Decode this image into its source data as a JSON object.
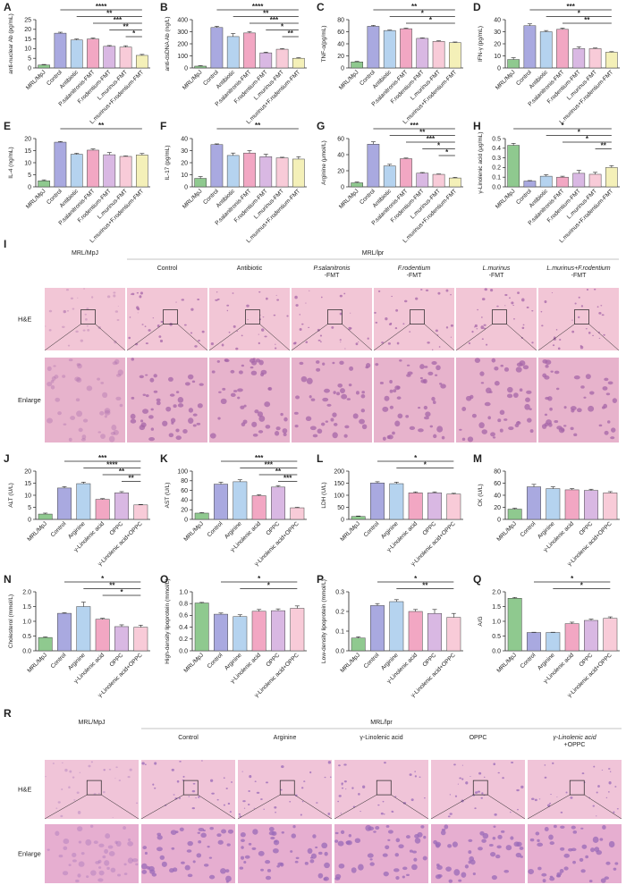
{
  "chart_data": [
    {
      "type": "bar",
      "label": "A",
      "ylabel": "anti-nuclear Ab (pg/mL)",
      "categories": [
        "MRL/MpJ",
        "Control",
        "Antibiotic",
        "P.salanitronis-FMT",
        "F.rodentium-FMT",
        "L.murinus-FMT",
        "L.murinus+F.rodentium-FMT"
      ],
      "values": [
        1.5,
        18,
        14.5,
        15,
        11.2,
        10.8,
        6.5
      ],
      "errors": [
        0.3,
        0.5,
        0.5,
        0.5,
        0.4,
        0.7,
        0.5
      ],
      "colors": [
        "#8fc98f",
        "#a9a9e0",
        "#b5d3ef",
        "#f2a7c3",
        "#d9b8e3",
        "#f8cbd8",
        "#f4f0b8"
      ],
      "ylim": [
        0,
        25
      ],
      "yticks": [
        0,
        5,
        10,
        15,
        20,
        25
      ],
      "annotations": [
        {
          "text": "****",
          "from": 1,
          "to": 6
        },
        {
          "text": "**",
          "from": 2,
          "to": 6
        },
        {
          "text": "***",
          "from": 3,
          "to": 6
        },
        {
          "text": "**",
          "from": 4,
          "to": 6
        },
        {
          "text": "*",
          "from": 5,
          "to": 6
        }
      ]
    },
    {
      "type": "bar",
      "label": "B",
      "ylabel": "anti-dsDNA Ab (ng/L)",
      "categories": [
        "MRL/MpJ",
        "Control",
        "Antibiotic",
        "P.salanitronis-FMT",
        "F.rodentium-FMT",
        "L.murinus-FMT",
        "L.murinus+F.rodentium-FMT"
      ],
      "values": [
        15,
        335,
        260,
        290,
        125,
        155,
        80
      ],
      "errors": [
        4,
        10,
        25,
        12,
        6,
        5,
        5
      ],
      "colors": [
        "#8fc98f",
        "#a9a9e0",
        "#b5d3ef",
        "#f2a7c3",
        "#d9b8e3",
        "#f8cbd8",
        "#f4f0b8"
      ],
      "ylim": [
        0,
        400
      ],
      "yticks": [
        0,
        100,
        200,
        300,
        400
      ],
      "annotations": [
        {
          "text": "****",
          "from": 1,
          "to": 6
        },
        {
          "text": "**",
          "from": 2,
          "to": 6
        },
        {
          "text": "***",
          "from": 3,
          "to": 6
        },
        {
          "text": "*",
          "from": 4,
          "to": 6
        },
        {
          "text": "**",
          "from": 5,
          "to": 6
        }
      ]
    },
    {
      "type": "bar",
      "label": "C",
      "ylabel": "TNF-α(pg/mL)",
      "categories": [
        "MRL/MpJ",
        "Control",
        "Antibiotic",
        "P.salanitronis-FMT",
        "F.rodentium-FMT",
        "L.murinus-FMT",
        "L.murinus+F.rodentium-FMT"
      ],
      "values": [
        10,
        69,
        62,
        65,
        49,
        44,
        42
      ],
      "errors": [
        1,
        1.5,
        0.8,
        1,
        0.8,
        1,
        1
      ],
      "colors": [
        "#8fc98f",
        "#a9a9e0",
        "#b5d3ef",
        "#f2a7c3",
        "#d9b8e3",
        "#f8cbd8",
        "#f4f0b8"
      ],
      "ylim": [
        0,
        80
      ],
      "yticks": [
        0,
        20,
        40,
        60,
        80
      ],
      "annotations": [
        {
          "text": "**",
          "from": 1,
          "to": 6
        },
        {
          "text": "*",
          "from": 2,
          "to": 6
        },
        {
          "text": "*",
          "from": 3,
          "to": 6
        }
      ]
    },
    {
      "type": "bar",
      "label": "D",
      "ylabel": "IFN-γ (pg/mL)",
      "categories": [
        "MRL/MpJ",
        "Control",
        "Antibiotic",
        "P.salanitronis-FMT",
        "F.rodentium-FMT",
        "L.murinus-FMT",
        "L.murinus+F.rodentium-FMT"
      ],
      "values": [
        7,
        35,
        30,
        32,
        16,
        16,
        13
      ],
      "errors": [
        1.5,
        1.5,
        1,
        1,
        1.5,
        0.5,
        0.5
      ],
      "colors": [
        "#8fc98f",
        "#a9a9e0",
        "#b5d3ef",
        "#f2a7c3",
        "#d9b8e3",
        "#f8cbd8",
        "#f4f0b8"
      ],
      "ylim": [
        0,
        40
      ],
      "yticks": [
        0,
        10,
        20,
        30,
        40
      ],
      "annotations": [
        {
          "text": "***",
          "from": 1,
          "to": 6
        },
        {
          "text": "*",
          "from": 2,
          "to": 6
        },
        {
          "text": "**",
          "from": 3,
          "to": 6
        }
      ]
    },
    {
      "type": "bar",
      "label": "E",
      "ylabel": "IL-4 (ng/mL)",
      "categories": [
        "MRL/MpJ",
        "Control",
        "Antibiotic",
        "P.salanitronis-FMT",
        "F.rodentium-FMT",
        "L.murinus-FMT",
        "L.murinus+F.rodentium-FMT"
      ],
      "values": [
        2.5,
        18.5,
        13.5,
        15.2,
        13.3,
        12.6,
        13.2
      ],
      "errors": [
        0.4,
        0.3,
        0.4,
        0.5,
        0.9,
        0.2,
        0.6
      ],
      "colors": [
        "#8fc98f",
        "#a9a9e0",
        "#b5d3ef",
        "#f2a7c3",
        "#d9b8e3",
        "#f8cbd8",
        "#f4f0b8"
      ],
      "ylim": [
        0,
        20
      ],
      "yticks": [
        0,
        5,
        10,
        15,
        20
      ],
      "annotations": [
        {
          "text": "**",
          "from": 1,
          "to": 6
        }
      ]
    },
    {
      "type": "bar",
      "label": "F",
      "ylabel": "IL-17 (pg/mL)",
      "categories": [
        "MRL/MpJ",
        "Control",
        "Antibiotic",
        "P.salanitronis-FMT",
        "F.rodentium-FMT",
        "L.murinus-FMT",
        "L.murinus+F.rodentium-FMT"
      ],
      "values": [
        7,
        35,
        26,
        28,
        25,
        24,
        23
      ],
      "errors": [
        1.5,
        0.6,
        2,
        2,
        2,
        0.5,
        2
      ],
      "colors": [
        "#8fc98f",
        "#a9a9e0",
        "#b5d3ef",
        "#f2a7c3",
        "#d9b8e3",
        "#f8cbd8",
        "#f4f0b8"
      ],
      "ylim": [
        0,
        40
      ],
      "yticks": [
        0,
        10,
        20,
        30,
        40
      ],
      "annotations": [
        {
          "text": "**",
          "from": 1,
          "to": 6
        }
      ]
    },
    {
      "type": "bar",
      "label": "G",
      "ylabel": "Arginine (μmol/L)",
      "categories": [
        "MRL/MpJ",
        "Control",
        "Antibiotic",
        "P.salanitronis-FMT",
        "F.rodentium-FMT",
        "L.murinus-FMT",
        "L.murinus+F.rodentium-FMT"
      ],
      "values": [
        5,
        53,
        26,
        35,
        17,
        15.5,
        11
      ],
      "errors": [
        1,
        3,
        2,
        0.8,
        0.8,
        0.5,
        0.8
      ],
      "colors": [
        "#8fc98f",
        "#a9a9e0",
        "#b5d3ef",
        "#f2a7c3",
        "#d9b8e3",
        "#f8cbd8",
        "#f4f0b8"
      ],
      "ylim": [
        0,
        60
      ],
      "yticks": [
        0,
        20,
        40,
        60
      ],
      "annotations": [
        {
          "text": "***",
          "from": 1,
          "to": 6
        },
        {
          "text": "**",
          "from": 2,
          "to": 6
        },
        {
          "text": "***",
          "from": 3,
          "to": 6
        },
        {
          "text": "*",
          "from": 4,
          "to": 6
        },
        {
          "text": "*",
          "from": 5,
          "to": 6
        }
      ]
    },
    {
      "type": "bar",
      "label": "H",
      "ylabel": "γ-Linolenic acid (μg/mL)",
      "categories": [
        "MRL/MpJ",
        "Control",
        "Antibiotic",
        "P.salanitronis-FMT",
        "F.rodentium-FMT",
        "L.murinus-FMT",
        "L.murinus+F.rodentium-FMT"
      ],
      "values": [
        0.43,
        0.06,
        0.11,
        0.1,
        0.14,
        0.13,
        0.2
      ],
      "errors": [
        0.02,
        0.005,
        0.015,
        0.01,
        0.03,
        0.02,
        0.02
      ],
      "colors": [
        "#8fc98f",
        "#a9a9e0",
        "#b5d3ef",
        "#f2a7c3",
        "#d9b8e3",
        "#f8cbd8",
        "#f4f0b8"
      ],
      "ylim": [
        0,
        0.5
      ],
      "yticks": [
        {
          "value": 0,
          "label": "0.0"
        },
        0.1,
        0.2,
        0.3,
        0.4,
        0.5
      ],
      "annotations": [
        {
          "text": "*",
          "from": 0,
          "to": 6
        },
        {
          "text": "*",
          "from": 2,
          "to": 6
        },
        {
          "text": "*",
          "from": 3,
          "to": 6
        },
        {
          "text": "**",
          "from": 5,
          "to": 6
        }
      ]
    },
    {
      "type": "bar",
      "label": "J",
      "ylabel": "ALT (U/L)",
      "categories": [
        "MRL/MpJ",
        "Control",
        "Arginine",
        "γ-Linolenic acid",
        "OPPC",
        "γ-Linolenic acid+OPPC"
      ],
      "values": [
        2.2,
        13,
        14.8,
        8.3,
        11,
        6
      ],
      "errors": [
        0.4,
        0.6,
        0.6,
        0.3,
        0.5,
        0.2
      ],
      "colors": [
        "#8fc98f",
        "#a9a9e0",
        "#b5d3ef",
        "#f2a7c3",
        "#d9b8e3",
        "#f8cbd8"
      ],
      "ylim": [
        0,
        20
      ],
      "yticks": [
        0,
        5,
        10,
        15,
        20
      ],
      "annotations": [
        {
          "text": "***",
          "from": 1,
          "to": 5
        },
        {
          "text": "****",
          "from": 2,
          "to": 5
        },
        {
          "text": "**",
          "from": 3,
          "to": 5
        },
        {
          "text": "**",
          "from": 4,
          "to": 5
        }
      ]
    },
    {
      "type": "bar",
      "label": "K",
      "ylabel": "AST (U/L)",
      "categories": [
        "MRL/MpJ",
        "Control",
        "Arginine",
        "γ-Linolenic acid",
        "OPPC",
        "γ-Linolenic acid+OPPC"
      ],
      "values": [
        13,
        73,
        78,
        49,
        67,
        24
      ],
      "errors": [
        1,
        4,
        4,
        2,
        3,
        1
      ],
      "colors": [
        "#8fc98f",
        "#a9a9e0",
        "#b5d3ef",
        "#f2a7c3",
        "#d9b8e3",
        "#f8cbd8"
      ],
      "ylim": [
        0,
        100
      ],
      "yticks": [
        0,
        20,
        40,
        60,
        80,
        100
      ],
      "annotations": [
        {
          "text": "***",
          "from": 1,
          "to": 5
        },
        {
          "text": "***",
          "from": 2,
          "to": 5
        },
        {
          "text": "**",
          "from": 3,
          "to": 5
        },
        {
          "text": "***",
          "from": 4,
          "to": 5
        }
      ]
    },
    {
      "type": "bar",
      "label": "L",
      "ylabel": "LDH (U/L)",
      "categories": [
        "MRL/MpJ",
        "Control",
        "Arginine",
        "γ-Linolenic acid",
        "OPPC",
        "γ-Linolenic acid+OPPC"
      ],
      "values": [
        12,
        151,
        148,
        110,
        110,
        105
      ],
      "errors": [
        2,
        5,
        6,
        4,
        4,
        3
      ],
      "colors": [
        "#8fc98f",
        "#a9a9e0",
        "#b5d3ef",
        "#f2a7c3",
        "#d9b8e3",
        "#f8cbd8"
      ],
      "ylim": [
        0,
        200
      ],
      "yticks": [
        0,
        50,
        100,
        150,
        200
      ],
      "annotations": [
        {
          "text": "*",
          "from": 1,
          "to": 5
        },
        {
          "text": "*",
          "from": 2,
          "to": 5
        }
      ]
    },
    {
      "type": "bar",
      "label": "M",
      "ylabel": "CK (U/L)",
      "categories": [
        "MRL/MpJ",
        "Control",
        "Arginine",
        "γ-Linolenic acid",
        "OPPC",
        "γ-Linolenic acid+OPPC"
      ],
      "values": [
        17,
        54,
        51,
        49,
        48,
        44
      ],
      "errors": [
        1.5,
        4,
        3,
        2,
        2,
        2
      ],
      "colors": [
        "#8fc98f",
        "#a9a9e0",
        "#b5d3ef",
        "#f2a7c3",
        "#d9b8e3",
        "#f8cbd8"
      ],
      "ylim": [
        0,
        80
      ],
      "yticks": [
        0,
        20,
        40,
        60,
        80
      ],
      "annotations": []
    },
    {
      "type": "bar",
      "label": "N",
      "ylabel": "Cholesterol (mmol/L)",
      "categories": [
        "MRL/MpJ",
        "Control",
        "Arginine",
        "γ-Linolenic acid",
        "OPPC",
        "γ-Linolenic acid+OPPC"
      ],
      "values": [
        0.45,
        1.27,
        1.5,
        1.07,
        0.82,
        0.8
      ],
      "errors": [
        0.02,
        0.02,
        0.15,
        0.03,
        0.06,
        0.07
      ],
      "colors": [
        "#8fc98f",
        "#a9a9e0",
        "#b5d3ef",
        "#f2a7c3",
        "#d9b8e3",
        "#f8cbd8"
      ],
      "ylim": [
        0,
        2
      ],
      "yticks": [
        {
          "value": 0,
          "label": "0.0"
        },
        0.5,
        {
          "value": 1,
          "label": "1.0"
        },
        1.5,
        {
          "value": 2,
          "label": "2.0"
        }
      ],
      "annotations": [
        {
          "text": "*",
          "from": 1,
          "to": 5
        },
        {
          "text": "**",
          "from": 2,
          "to": 5
        },
        {
          "text": "*",
          "from": 3,
          "to": 5
        }
      ]
    },
    {
      "type": "bar",
      "label": "O",
      "ylabel": "High-density lipoprotein (mmol/L)",
      "categories": [
        "MRL/MpJ",
        "Control",
        "Arginine",
        "γ-Linolenic acid",
        "OPPC",
        "γ-Linolenic acid+OPPC"
      ],
      "values": [
        0.81,
        0.62,
        0.58,
        0.67,
        0.68,
        0.72
      ],
      "errors": [
        0.01,
        0.02,
        0.03,
        0.03,
        0.03,
        0.04
      ],
      "colors": [
        "#8fc98f",
        "#a9a9e0",
        "#b5d3ef",
        "#f2a7c3",
        "#d9b8e3",
        "#f8cbd8"
      ],
      "ylim": [
        0,
        1
      ],
      "yticks": [
        {
          "value": 0,
          "label": "0.0"
        },
        0.2,
        0.4,
        0.6,
        0.8,
        {
          "value": 1,
          "label": "1.0"
        }
      ],
      "annotations": [
        {
          "text": "*",
          "from": 1,
          "to": 5
        },
        {
          "text": "*",
          "from": 2,
          "to": 5
        }
      ]
    },
    {
      "type": "bar",
      "label": "P",
      "ylabel": "Low-density lipoprotein (mmol/L)",
      "categories": [
        "MRL/MpJ",
        "Control",
        "Arginine",
        "γ-Linolenic acid",
        "OPPC",
        "γ-Linolenic acid+OPPC"
      ],
      "values": [
        0.065,
        0.23,
        0.25,
        0.2,
        0.19,
        0.17
      ],
      "errors": [
        0.006,
        0.01,
        0.01,
        0.01,
        0.02,
        0.02
      ],
      "colors": [
        "#8fc98f",
        "#a9a9e0",
        "#b5d3ef",
        "#f2a7c3",
        "#d9b8e3",
        "#f8cbd8"
      ],
      "ylim": [
        0,
        0.3
      ],
      "yticks": [
        {
          "value": 0,
          "label": "0.0"
        },
        0.1,
        0.2,
        0.3
      ],
      "annotations": [
        {
          "text": "*",
          "from": 1,
          "to": 5
        },
        {
          "text": "**",
          "from": 2,
          "to": 5
        }
      ]
    },
    {
      "type": "bar",
      "label": "Q",
      "ylabel": "A/G",
      "categories": [
        "MRL/MpJ",
        "Control",
        "Arginine",
        "γ-Linolenic acid",
        "OPPC",
        "γ-Linolenic acid+OPPC"
      ],
      "values": [
        1.78,
        0.62,
        0.62,
        0.92,
        1.03,
        1.1
      ],
      "errors": [
        0.03,
        0.01,
        0.01,
        0.05,
        0.04,
        0.05
      ],
      "colors": [
        "#8fc98f",
        "#a9a9e0",
        "#b5d3ef",
        "#f2a7c3",
        "#d9b8e3",
        "#f8cbd8"
      ],
      "ylim": [
        0,
        2
      ],
      "yticks": [
        {
          "value": 0,
          "label": "0.0"
        },
        0.5,
        {
          "value": 1,
          "label": "1.0"
        },
        1.5,
        {
          "value": 2,
          "label": "2.0"
        }
      ],
      "annotations": [
        {
          "text": "*",
          "from": 1,
          "to": 5
        },
        {
          "text": "*",
          "from": 2,
          "to": 5
        }
      ]
    }
  ],
  "histology": [
    {
      "label": "I",
      "group_labels": [
        "MRL/MpJ",
        "MRL/lpr"
      ],
      "columns": [
        [],
        [
          "Control"
        ],
        [
          "Antibiotic"
        ],
        [
          "P.salanitronis",
          "-FMT"
        ],
        [
          "F.rodentium",
          "-FMT"
        ],
        [
          "L.murinus",
          "-FMT"
        ],
        [
          "L.murinus+F.rodentium",
          "-FMT"
        ]
      ],
      "rows": [
        "H&E",
        "Enlarge"
      ]
    },
    {
      "label": "R",
      "group_labels": [
        "MRL/MpJ",
        "MRL/lpr"
      ],
      "columns": [
        [],
        [
          "Control"
        ],
        [
          "Arginine"
        ],
        [
          "γ-Linolenic acid"
        ],
        [
          "OPPC"
        ],
        [
          "γ-Linolenic acid",
          "+OPPC"
        ]
      ],
      "rows": [
        "H&E",
        "Enlarge"
      ]
    }
  ]
}
